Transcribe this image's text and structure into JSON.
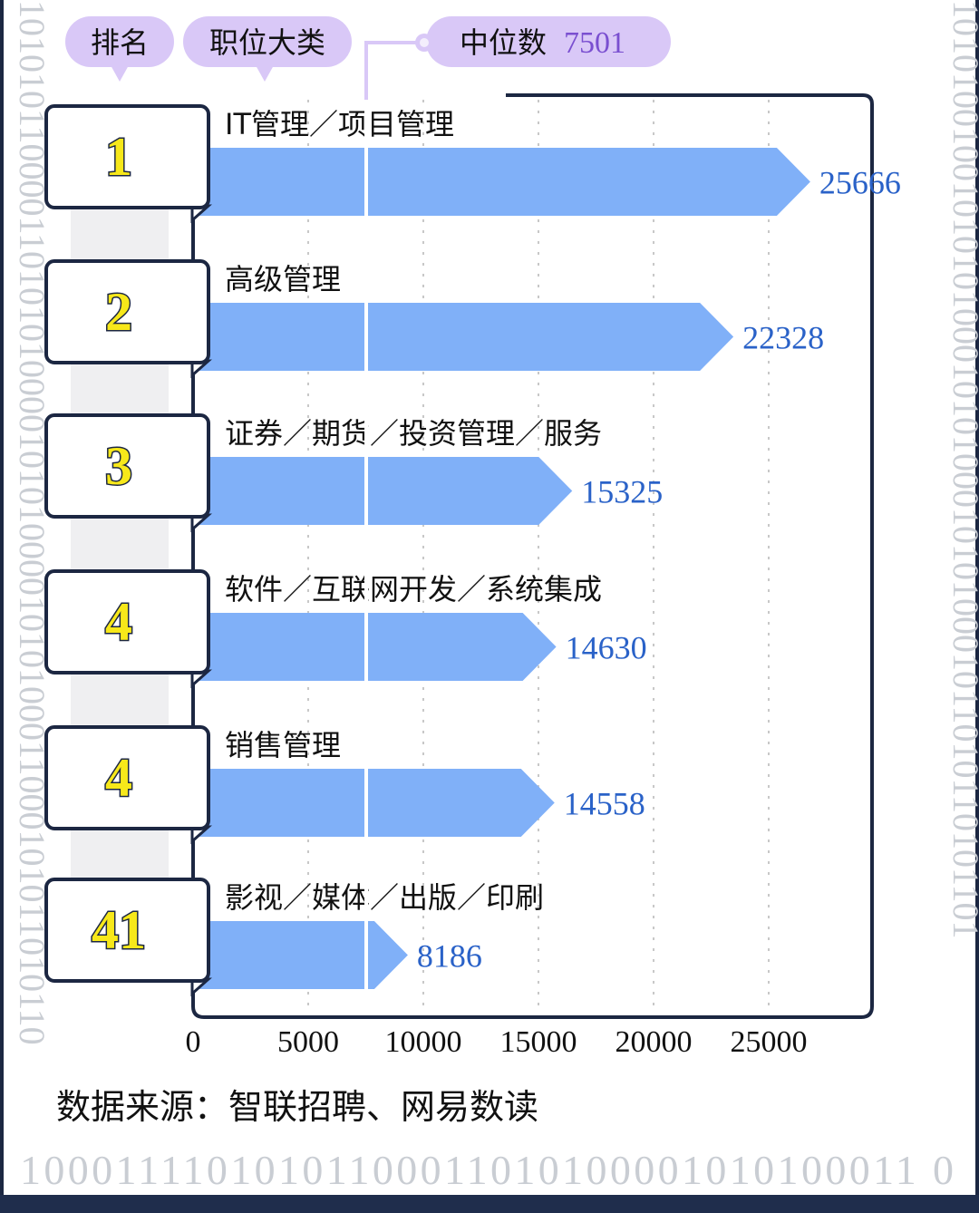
{
  "header": {
    "rank_tag": "排名",
    "category_tag": "职位大类",
    "median_label": "中位数",
    "median_value": "7501"
  },
  "chart_data": {
    "type": "bar",
    "orientation": "horizontal",
    "categories": [
      "IT管理／项目管理",
      "高级管理",
      "证券／期货／投资管理／服务",
      "软件／互联网开发／系统集成",
      "销售管理",
      "影视／媒体／出版／印刷"
    ],
    "ranks": [
      "1",
      "2",
      "3",
      "4",
      "4",
      "41"
    ],
    "values": [
      25666,
      22328,
      15325,
      14630,
      14558,
      8186
    ],
    "value_labels": [
      "25666",
      "22328",
      "15325",
      "14630",
      "14558",
      "8186"
    ],
    "median": 7501,
    "xlim": [
      0,
      27000
    ],
    "xticks": [
      "0",
      "5000",
      "10000",
      "15000",
      "20000",
      "25000"
    ],
    "grid": "vertical dotted",
    "source": "数据来源：智联招聘、网易数读"
  },
  "colors": {
    "bar": "#80b0f8",
    "value_text": "#2a62c8",
    "median_text": "#7a4fd0",
    "tag_bg": "#d9c8f7",
    "frame": "#1c2742",
    "rank_fill": "#f7e81a",
    "binary_text": "#c9cdd3"
  },
  "decor": {
    "binary_bottom": "10001111010101100011010100001010100011 0",
    "binary_left": "1010101100001101010100001010100001010100011000101011010110",
    "binary_right": "1010100100101010100010101000101010001011010110101101"
  }
}
